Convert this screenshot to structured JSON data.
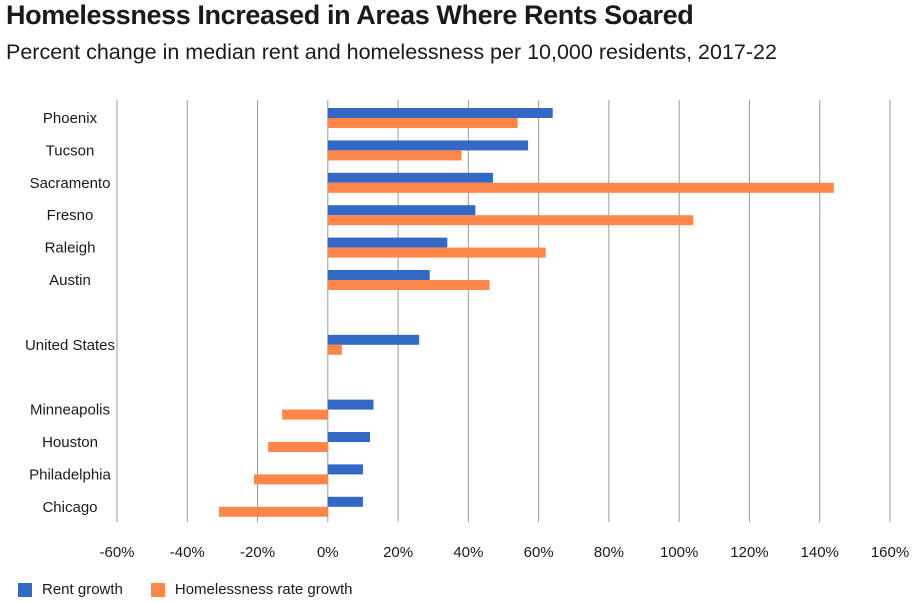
{
  "chart_data": {
    "type": "bar",
    "orientation": "horizontal",
    "title": "Homelessness Increased in Areas Where Rents Soared",
    "subtitle": "Percent change in median rent and homelessness per 10,000 residents, 2017-22",
    "xlabel": "",
    "ylabel": "",
    "xlim": [
      -60,
      160
    ],
    "xticks": [
      -60,
      -40,
      -20,
      0,
      20,
      40,
      60,
      80,
      100,
      120,
      140,
      160
    ],
    "tick_suffix": "%",
    "grid": true,
    "legend_position": "bottom-left",
    "categories": [
      "Phoenix",
      "Tucson",
      "Sacramento",
      "Fresno",
      "Raleigh",
      "Austin",
      "United States",
      "Minneapolis",
      "Houston",
      "Philadelphia",
      "Chicago"
    ],
    "groups": [
      [
        "Phoenix",
        "Tucson",
        "Sacramento",
        "Fresno",
        "Raleigh",
        "Austin"
      ],
      [
        "United States"
      ],
      [
        "Minneapolis",
        "Houston",
        "Philadelphia",
        "Chicago"
      ]
    ],
    "series": [
      {
        "name": "Rent growth",
        "color": "#3368C4",
        "values": [
          64,
          57,
          47,
          42,
          34,
          29,
          26,
          13,
          12,
          10,
          10
        ]
      },
      {
        "name": "Homelessness rate growth",
        "color": "#FF8648",
        "values": [
          54,
          38,
          144,
          104,
          62,
          46,
          4,
          -13,
          -17,
          -21,
          -31
        ]
      }
    ]
  }
}
